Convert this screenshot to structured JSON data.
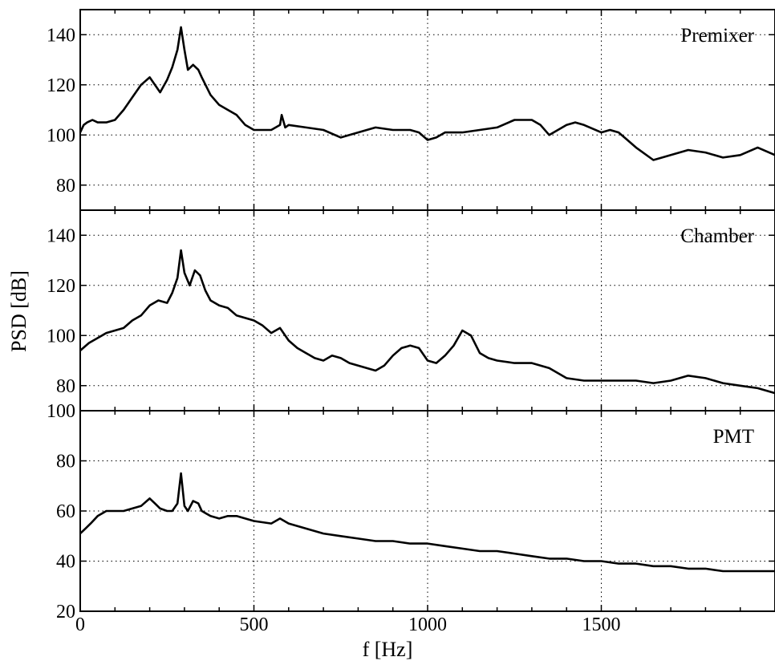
{
  "chart_data": [
    {
      "type": "line",
      "title": "Premixer",
      "xlim": [
        0,
        2000
      ],
      "ylim": [
        70,
        150
      ],
      "yticks": [
        80,
        100,
        120,
        140
      ],
      "xticks": [
        0,
        500,
        1000,
        1500
      ],
      "grid": true,
      "series": [
        {
          "x": [
            0,
            10,
            20,
            35,
            50,
            75,
            100,
            125,
            150,
            175,
            200,
            215,
            230,
            250,
            265,
            280,
            290,
            300,
            310,
            325,
            340,
            350,
            375,
            400,
            425,
            450,
            475,
            500,
            525,
            550,
            575,
            580,
            590,
            600,
            650,
            700,
            750,
            800,
            850,
            900,
            950,
            975,
            1000,
            1025,
            1050,
            1100,
            1150,
            1200,
            1250,
            1300,
            1325,
            1350,
            1400,
            1425,
            1450,
            1500,
            1525,
            1550,
            1575,
            1600,
            1650,
            1675,
            1700,
            1750,
            1800,
            1850,
            1900,
            1950,
            2000
          ],
          "y": [
            101,
            104,
            105,
            106,
            105,
            105,
            106,
            110,
            115,
            120,
            123,
            120,
            117,
            122,
            127,
            134,
            143,
            134,
            126,
            128,
            126,
            123,
            116,
            112,
            110,
            108,
            104,
            102,
            102,
            102,
            104,
            108,
            103,
            104,
            103,
            102,
            99,
            101,
            103,
            102,
            102,
            101,
            98,
            99,
            101,
            101,
            102,
            103,
            106,
            106,
            104,
            100,
            104,
            105,
            104,
            101,
            102,
            101,
            98,
            95,
            90,
            91,
            92,
            94,
            93,
            91,
            92,
            95,
            92
          ]
        }
      ]
    },
    {
      "type": "line",
      "title": "Chamber",
      "xlim": [
        0,
        2000
      ],
      "ylim": [
        70,
        150
      ],
      "yticks": [
        80,
        100,
        120,
        140
      ],
      "xticks": [
        0,
        500,
        1000,
        1500
      ],
      "grid": true,
      "series": [
        {
          "x": [
            0,
            25,
            50,
            75,
            100,
            125,
            150,
            175,
            200,
            225,
            250,
            265,
            280,
            290,
            300,
            315,
            330,
            345,
            360,
            375,
            400,
            425,
            450,
            475,
            500,
            525,
            550,
            575,
            600,
            625,
            650,
            675,
            700,
            725,
            750,
            775,
            800,
            850,
            875,
            900,
            925,
            950,
            975,
            1000,
            1025,
            1050,
            1075,
            1100,
            1125,
            1150,
            1175,
            1200,
            1250,
            1300,
            1350,
            1400,
            1450,
            1500,
            1550,
            1600,
            1650,
            1700,
            1750,
            1800,
            1850,
            1900,
            1950,
            2000
          ],
          "y": [
            94,
            97,
            99,
            101,
            102,
            103,
            106,
            108,
            112,
            114,
            113,
            117,
            123,
            134,
            125,
            120,
            126,
            124,
            118,
            114,
            112,
            111,
            108,
            107,
            106,
            104,
            101,
            103,
            98,
            95,
            93,
            91,
            90,
            92,
            91,
            89,
            88,
            86,
            88,
            92,
            95,
            96,
            95,
            90,
            89,
            92,
            96,
            102,
            100,
            93,
            91,
            90,
            89,
            89,
            87,
            83,
            82,
            82,
            82,
            82,
            81,
            82,
            84,
            83,
            81,
            80,
            79,
            77
          ]
        }
      ]
    },
    {
      "type": "line",
      "title": "PMT",
      "xlim": [
        0,
        2000
      ],
      "ylim": [
        20,
        100
      ],
      "yticks": [
        20,
        40,
        60,
        80,
        100
      ],
      "xticks": [
        0,
        500,
        1000,
        1500
      ],
      "xticklabels": [
        "0",
        "500",
        "1000",
        "1500"
      ],
      "xlabel": "f [Hz]",
      "grid": true,
      "series": [
        {
          "x": [
            0,
            15,
            30,
            50,
            75,
            100,
            125,
            150,
            175,
            200,
            215,
            230,
            250,
            265,
            280,
            290,
            300,
            310,
            325,
            340,
            350,
            375,
            400,
            425,
            450,
            475,
            500,
            550,
            575,
            600,
            650,
            700,
            750,
            800,
            850,
            900,
            950,
            1000,
            1050,
            1100,
            1150,
            1200,
            1250,
            1300,
            1350,
            1400,
            1450,
            1500,
            1550,
            1600,
            1650,
            1700,
            1750,
            1800,
            1850,
            1900,
            1950,
            2000
          ],
          "y": [
            51,
            53,
            55,
            58,
            60,
            60,
            60,
            61,
            62,
            65,
            63,
            61,
            60,
            60,
            63,
            75,
            62,
            60,
            64,
            63,
            60,
            58,
            57,
            58,
            58,
            57,
            56,
            55,
            57,
            55,
            53,
            51,
            50,
            49,
            48,
            48,
            47,
            47,
            46,
            45,
            44,
            44,
            43,
            42,
            41,
            41,
            40,
            40,
            39,
            39,
            38,
            38,
            37,
            37,
            36,
            36,
            36,
            36
          ]
        }
      ]
    }
  ],
  "shared": {
    "ylabel": "PSD [dB]"
  }
}
